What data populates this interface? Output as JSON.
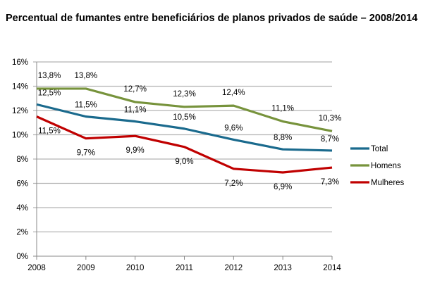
{
  "chart_data": {
    "type": "line",
    "title": "Percentual de fumantes entre beneficiários de planos privados de saúde – 2008/2014",
    "xlabel": "",
    "ylabel": "",
    "categories": [
      "2008",
      "2009",
      "2010",
      "2011",
      "2012",
      "2013",
      "2014"
    ],
    "ylim": [
      0,
      16
    ],
    "yticks": [
      "0%",
      "2%",
      "4%",
      "6%",
      "8%",
      "10%",
      "12%",
      "14%",
      "16%"
    ],
    "grid": true,
    "legend_position": "right",
    "series": [
      {
        "name": "Total",
        "color": "#1a6a8d",
        "values": [
          12.5,
          11.5,
          11.1,
          10.5,
          9.6,
          8.8,
          8.7
        ],
        "labels": [
          "12,5%",
          "11,5%",
          "11,1%",
          "10,5%",
          "9,6%",
          "8,8%",
          "8,7%"
        ]
      },
      {
        "name": "Homens",
        "color": "#77933c",
        "values": [
          13.8,
          13.8,
          12.7,
          12.3,
          12.4,
          11.1,
          10.3
        ],
        "labels": [
          "13,8%",
          "13,8%",
          "12,7%",
          "12,3%",
          "12,4%",
          "11,1%",
          "10,3%"
        ]
      },
      {
        "name": "Mulheres",
        "color": "#c00000",
        "values": [
          11.5,
          9.7,
          9.9,
          9.0,
          7.2,
          6.9,
          7.3
        ],
        "labels": [
          "11,5%",
          "9,7%",
          "9,9%",
          "9,0%",
          "7,2%",
          "6,9%",
          "7,3%"
        ]
      }
    ]
  }
}
